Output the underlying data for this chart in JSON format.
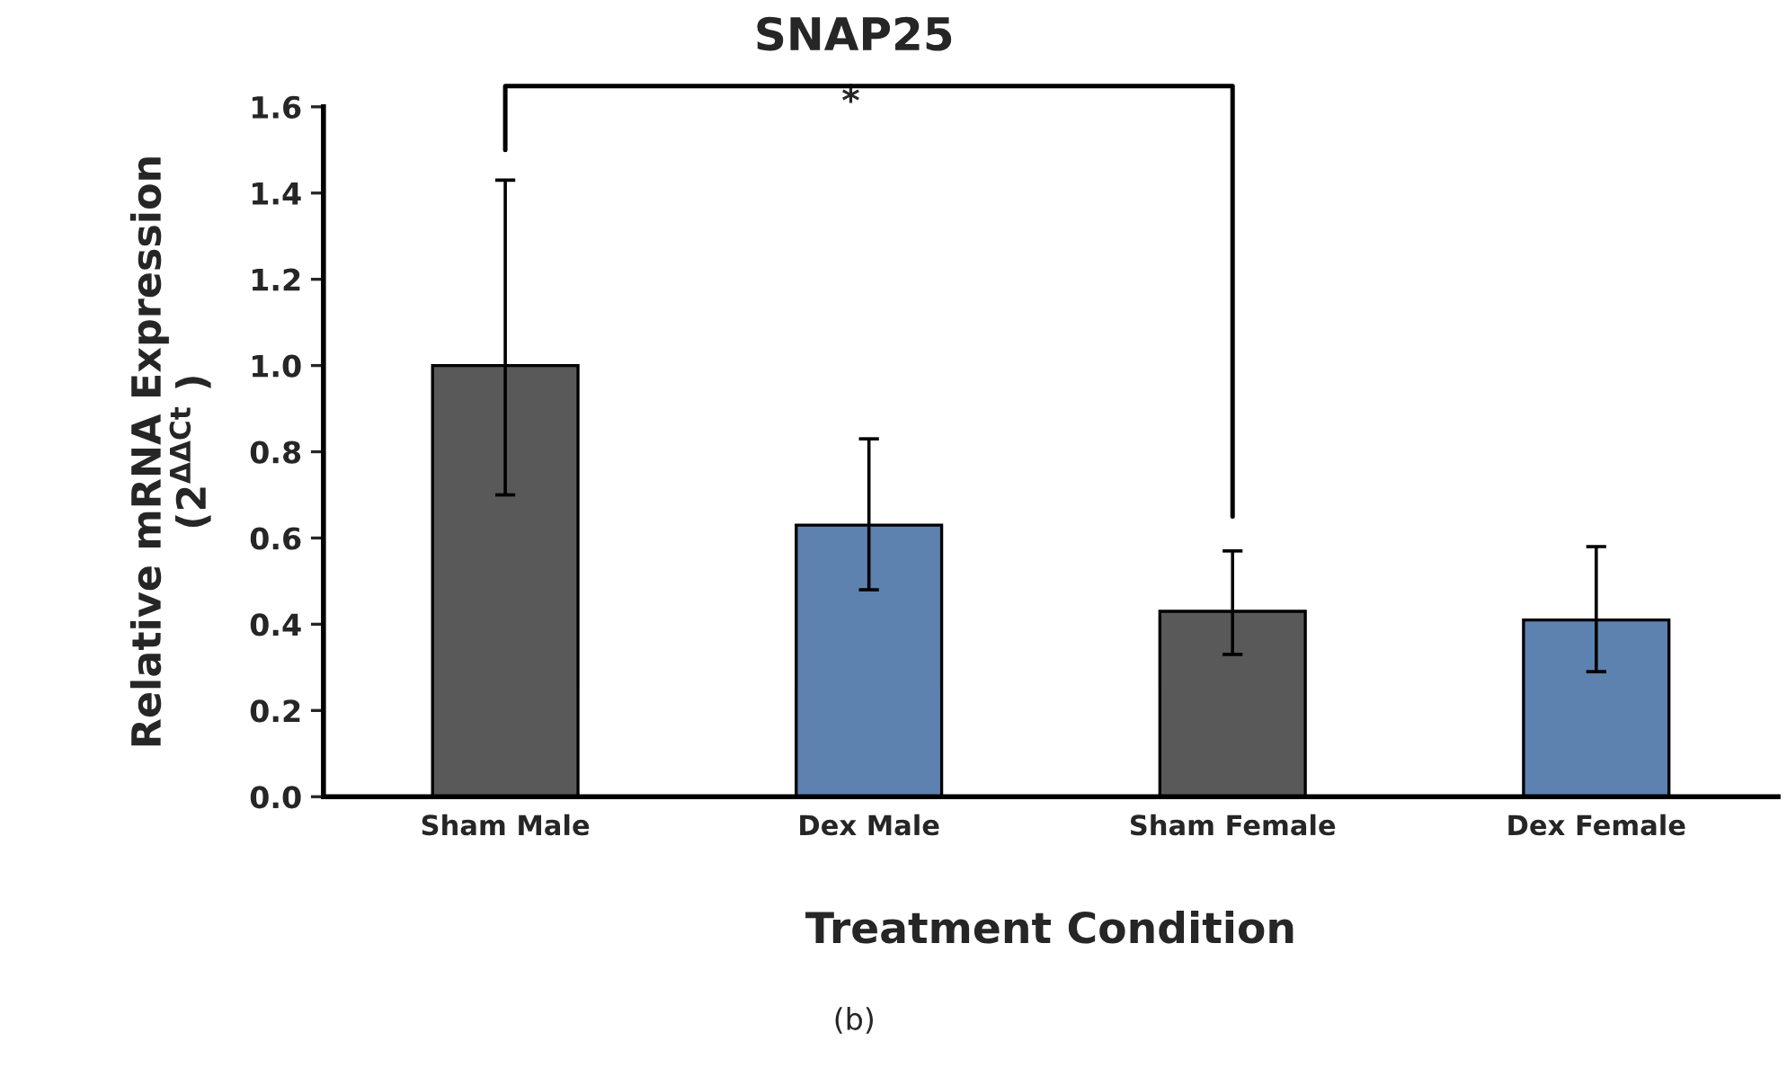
{
  "chart_data": {
    "type": "bar",
    "title": "SNAP25",
    "xlabel": "Treatment Condition",
    "ylabel": "Relative mRNA Expression\n(2$^{ΔΔCt}$ )",
    "categories": [
      "Sham Male",
      "Dex Male",
      "Sham Female",
      "Dex Female"
    ],
    "values": [
      1.0,
      0.63,
      0.43,
      0.41
    ],
    "colors": [
      "#595959",
      "#4f81bd",
      "#595959",
      "#4f81bd"
    ],
    "errors": [
      [
        0.7,
        1.43
      ],
      [
        0.48,
        0.83
      ],
      [
        0.33,
        0.57
      ],
      [
        0.29,
        0.58
      ]
    ],
    "ylim": [
      0,
      1.6
    ],
    "yticks": [
      {
        "value": 0,
        "label": "0.0"
      },
      0.2,
      0.4,
      0.6,
      0.8,
      {
        "value": 1,
        "label": "1.0"
      },
      1.2,
      1.4,
      1.6
    ],
    "grid": false,
    "legend": false,
    "annotations": [
      "*",
      "(b)"
    ]
  }
}
